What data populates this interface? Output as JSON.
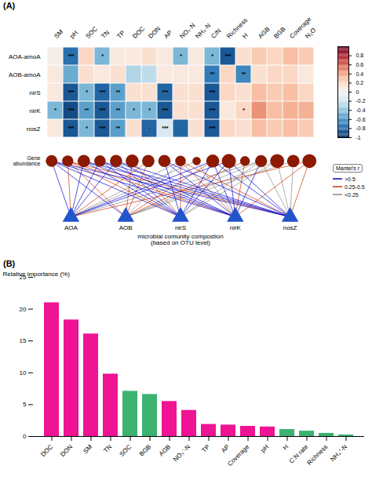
{
  "chart_data": [
    {
      "type": "heatmap",
      "title": "(A)",
      "categories": [
        "SM",
        "pH",
        "SOC",
        "TN",
        "TP",
        "DOC",
        "DON",
        "AP",
        "NO₃·N",
        "NH₄·N",
        "C/N",
        "Richness",
        "H",
        "AGB",
        "BGB",
        "Coverage",
        "N₂O"
      ],
      "rows": [
        "AOA-amoA",
        "AOB-amoA",
        "nirS",
        "nirK",
        "nosZ"
      ],
      "values": [
        [
          0.05,
          -0.75,
          0.2,
          -0.45,
          0.1,
          0.1,
          0.15,
          0.1,
          -0.45,
          0.1,
          -0.45,
          -0.85,
          0.15,
          0.25,
          0.2,
          0.3,
          0.25
        ],
        [
          0.1,
          -0.5,
          0.15,
          0.1,
          0.15,
          -0.3,
          -0.25,
          0.1,
          0.1,
          0.1,
          -0.7,
          0.2,
          -0.65,
          0.15,
          0.2,
          0.2,
          0.1
        ],
        [
          0.1,
          -0.85,
          -0.45,
          -0.8,
          -0.55,
          0.15,
          0.15,
          -0.8,
          0.15,
          0.15,
          -0.85,
          0.2,
          0.15,
          0.3,
          0.25,
          0.3,
          0.2
        ],
        [
          -0.45,
          -0.9,
          -0.55,
          -0.85,
          -0.55,
          -0.45,
          -0.45,
          -0.85,
          0.15,
          0.15,
          -0.85,
          0.1,
          0.2,
          0.45,
          0.3,
          0.35,
          0.35
        ],
        [
          0.1,
          -0.85,
          -0.45,
          -0.85,
          -0.55,
          0.15,
          -0.8,
          -0.15,
          -0.8,
          0.15,
          -0.85,
          0.2,
          0.15,
          0.3,
          0.25,
          0.3,
          0.25
        ]
      ],
      "stars": [
        [
          null,
          "***",
          null,
          "*",
          null,
          null,
          null,
          null,
          "*",
          null,
          "*",
          "***",
          null,
          null,
          null,
          null,
          null
        ],
        [
          null,
          null,
          null,
          null,
          null,
          null,
          null,
          null,
          null,
          null,
          "**",
          null,
          "**",
          null,
          null,
          null,
          null
        ],
        [
          null,
          "***",
          "*",
          "***",
          "**",
          null,
          null,
          "***",
          null,
          null,
          "***",
          null,
          null,
          null,
          null,
          null,
          null
        ],
        [
          "*",
          "***",
          "**",
          "***",
          "**",
          "*",
          "*",
          "***",
          null,
          null,
          "***",
          null,
          "*",
          null,
          null,
          null,
          null
        ],
        [
          null,
          "***",
          "*",
          "***",
          "**",
          null,
          "·",
          "***",
          null,
          null,
          "***",
          null,
          null,
          null,
          null,
          null,
          null
        ]
      ],
      "colorbar_lim": [
        -1,
        1
      ],
      "colorbar_ticks": [
        -1,
        -0.8,
        -0.6,
        -0.4,
        -0.2,
        0,
        0.2,
        0.4,
        0.6,
        0.8
      ]
    },
    {
      "type": "network",
      "env_nodes": {
        "sizes": [
          0.55,
          0.5,
          0.62,
          0.52,
          0.6,
          0.68,
          0.62,
          0.6,
          0.45,
          0.28,
          0.68,
          0.8,
          0.38,
          0.58,
          0.78,
          0.62,
          0.78
        ],
        "color": "#8B1A00"
      },
      "community_nodes": {
        "categories": [
          "AOA",
          "AOB",
          "nirS",
          "nirK",
          "nosZ"
        ],
        "color": "#2255CC"
      },
      "node_label": "Gene\nabundance",
      "caption": "microbial comunity compostion\n(based on OTU level)",
      "legend_title": "Mantel's r",
      "series": [
        {
          "name": ">0.5",
          "color": "#0000CC",
          "links": [
            [
              0,
              0
            ],
            [
              1,
              0
            ],
            [
              2,
              0
            ],
            [
              3,
              0
            ],
            [
              4,
              0
            ],
            [
              0,
              2
            ],
            [
              2,
              2
            ],
            [
              3,
              2
            ],
            [
              4,
              2
            ],
            [
              0,
              3
            ],
            [
              2,
              3
            ],
            [
              3,
              3
            ],
            [
              4,
              3
            ],
            [
              0,
              4
            ],
            [
              2,
              4
            ],
            [
              3,
              4
            ],
            [
              4,
              4
            ],
            [
              2,
              7
            ],
            [
              3,
              7
            ],
            [
              4,
              7
            ],
            [
              0,
              10
            ],
            [
              2,
              10
            ],
            [
              3,
              10
            ],
            [
              4,
              10
            ],
            [
              0,
              11
            ],
            [
              2,
              11
            ],
            [
              3,
              11
            ],
            [
              4,
              11
            ],
            [
              3,
              13
            ]
          ]
        },
        {
          "name": "0.25-0.5",
          "color": "#CC3300",
          "links": [
            [
              0,
              1
            ],
            [
              1,
              1
            ],
            [
              2,
              1
            ],
            [
              3,
              1
            ],
            [
              4,
              1
            ],
            [
              1,
              5
            ],
            [
              2,
              5
            ],
            [
              0,
              6
            ],
            [
              1,
              6
            ],
            [
              2,
              8
            ],
            [
              3,
              8
            ],
            [
              4,
              8
            ],
            [
              1,
              10
            ],
            [
              1,
              12
            ],
            [
              3,
              12
            ],
            [
              0,
              16
            ],
            [
              3,
              16
            ],
            [
              4,
              16
            ]
          ]
        },
        {
          "name": "<0.25",
          "color": "#888888",
          "links": [
            [
              0,
              8
            ],
            [
              1,
              8
            ],
            [
              0,
              9
            ],
            [
              3,
              9
            ],
            [
              0,
              13
            ],
            [
              1,
              13
            ],
            [
              2,
              13
            ],
            [
              4,
              13
            ],
            [
              1,
              14
            ],
            [
              2,
              14
            ],
            [
              4,
              14
            ],
            [
              1,
              15
            ],
            [
              4,
              15
            ]
          ]
        }
      ]
    },
    {
      "type": "bar",
      "title": "(B)",
      "categories": [
        "DOC",
        "DON",
        "SM",
        "TN",
        "SOC",
        "BGB",
        "AGB",
        "NO₃⁻-N",
        "TP",
        "AP",
        "Coverage",
        "pH",
        "H",
        "C:N rate",
        "Richness",
        "NH₄⁺-N"
      ],
      "values": [
        21.0,
        18.3,
        16.1,
        9.8,
        7.1,
        6.6,
        5.5,
        4.1,
        1.9,
        1.8,
        1.6,
        1.5,
        1.1,
        0.85,
        0.5,
        0.25
      ],
      "colors": [
        "#EE1493",
        "#EE1493",
        "#EE1493",
        "#EE1493",
        "#3CB371",
        "#3CB371",
        "#EE1493",
        "#EE1493",
        "#EE1493",
        "#EE1493",
        "#EE1493",
        "#EE1493",
        "#3CB371",
        "#3CB371",
        "#3CB371",
        "#3CB371"
      ],
      "ylabel": "Relative importance (%)",
      "ylim": [
        0,
        25
      ],
      "yticks": [
        0,
        5,
        10,
        15,
        20,
        25
      ],
      "grid": false
    }
  ]
}
